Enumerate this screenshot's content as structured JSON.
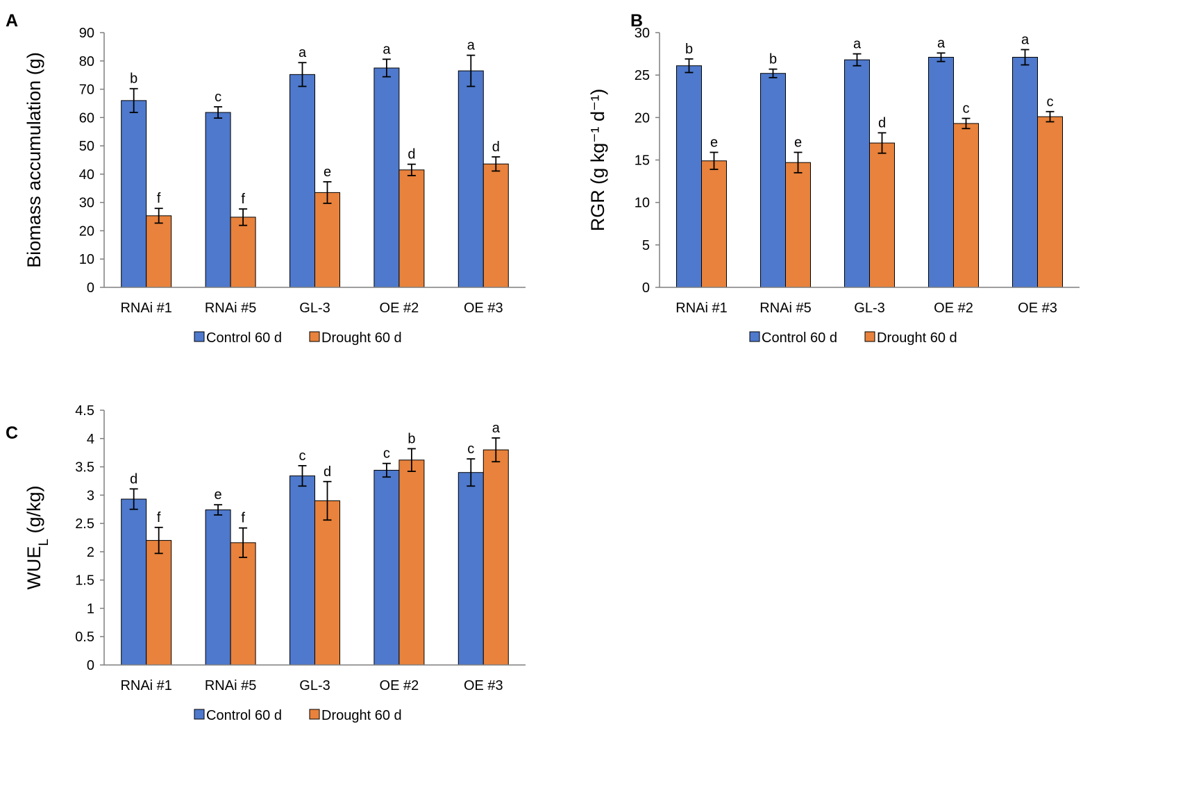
{
  "chart_data": [
    {
      "panel_label": "A",
      "type": "bar",
      "title": "",
      "xlabel": "",
      "ylabel": "Biomass accumulation (g)",
      "ylim": [
        0,
        90
      ],
      "yticks": [
        "0",
        "10",
        "20",
        "30",
        "40",
        "50",
        "60",
        "70",
        "80",
        "90"
      ],
      "categories": [
        "RNAi #1",
        "RNAi #5",
        "GL-3",
        "OE #2",
        "OE #3"
      ],
      "series": [
        {
          "name": "Control 60 d",
          "color": "#4E79CC",
          "values": [
            66.0,
            61.8,
            75.2,
            77.5,
            76.5
          ],
          "errors": [
            4.2,
            2.0,
            4.2,
            3.1,
            5.5
          ],
          "letters": [
            "b",
            "c",
            "a",
            "a",
            "a"
          ]
        },
        {
          "name": "Drought 60 d",
          "color": "#E8823C",
          "values": [
            25.3,
            24.8,
            33.5,
            41.5,
            43.6
          ],
          "errors": [
            2.6,
            2.9,
            3.8,
            2.0,
            2.5
          ],
          "letters": [
            "f",
            "f",
            "e",
            "d",
            "d"
          ]
        }
      ],
      "legend_position": "bottom-center",
      "grid": false
    },
    {
      "panel_label": "B",
      "type": "bar",
      "title": "",
      "xlabel": "",
      "ylabel": "RGR (g kg⁻¹ d⁻¹)",
      "ylim": [
        0,
        30
      ],
      "yticks": [
        "0",
        "5",
        "10",
        "15",
        "20",
        "25",
        "30"
      ],
      "categories": [
        "RNAi #1",
        "RNAi #5",
        "GL-3",
        "OE #2",
        "OE #3"
      ],
      "series": [
        {
          "name": "Control 60 d",
          "color": "#4E79CC",
          "values": [
            26.1,
            25.2,
            26.8,
            27.1,
            27.1
          ],
          "errors": [
            0.8,
            0.5,
            0.7,
            0.5,
            0.9
          ],
          "letters": [
            "b",
            "b",
            "a",
            "a",
            "a"
          ]
        },
        {
          "name": "Drought 60 d",
          "color": "#E8823C",
          "values": [
            14.9,
            14.7,
            17.0,
            19.3,
            20.1
          ],
          "errors": [
            1.0,
            1.2,
            1.2,
            0.6,
            0.6
          ],
          "letters": [
            "e",
            "e",
            "d",
            "c",
            "c"
          ]
        }
      ],
      "legend_position": "bottom-center",
      "grid": false
    },
    {
      "panel_label": "C",
      "type": "bar",
      "title": "",
      "xlabel": "",
      "ylabel": "WUE",
      "ylabel_subscript": "L",
      "ylabel_suffix": " (g/kg)",
      "ylim": [
        0,
        4.5
      ],
      "yticks": [
        "0",
        "0.5",
        "1",
        "1.5",
        "2",
        "2.5",
        "3",
        "3.5",
        "4",
        "4.5"
      ],
      "categories": [
        "RNAi #1",
        "RNAi #5",
        "GL-3",
        "OE #2",
        "OE #3"
      ],
      "series": [
        {
          "name": "Control 60 d",
          "color": "#4E79CC",
          "values": [
            2.93,
            2.74,
            3.34,
            3.44,
            3.4
          ],
          "errors": [
            0.18,
            0.09,
            0.18,
            0.12,
            0.24
          ],
          "letters": [
            "d",
            "e",
            "c",
            "c",
            "c"
          ]
        },
        {
          "name": "Drought 60 d",
          "color": "#E8823C",
          "values": [
            2.2,
            2.16,
            2.9,
            3.62,
            3.8
          ],
          "errors": [
            0.23,
            0.26,
            0.34,
            0.2,
            0.21
          ],
          "letters": [
            "f",
            "f",
            "d",
            "b",
            "a"
          ]
        }
      ],
      "legend_position": "bottom-center",
      "grid": false
    }
  ]
}
